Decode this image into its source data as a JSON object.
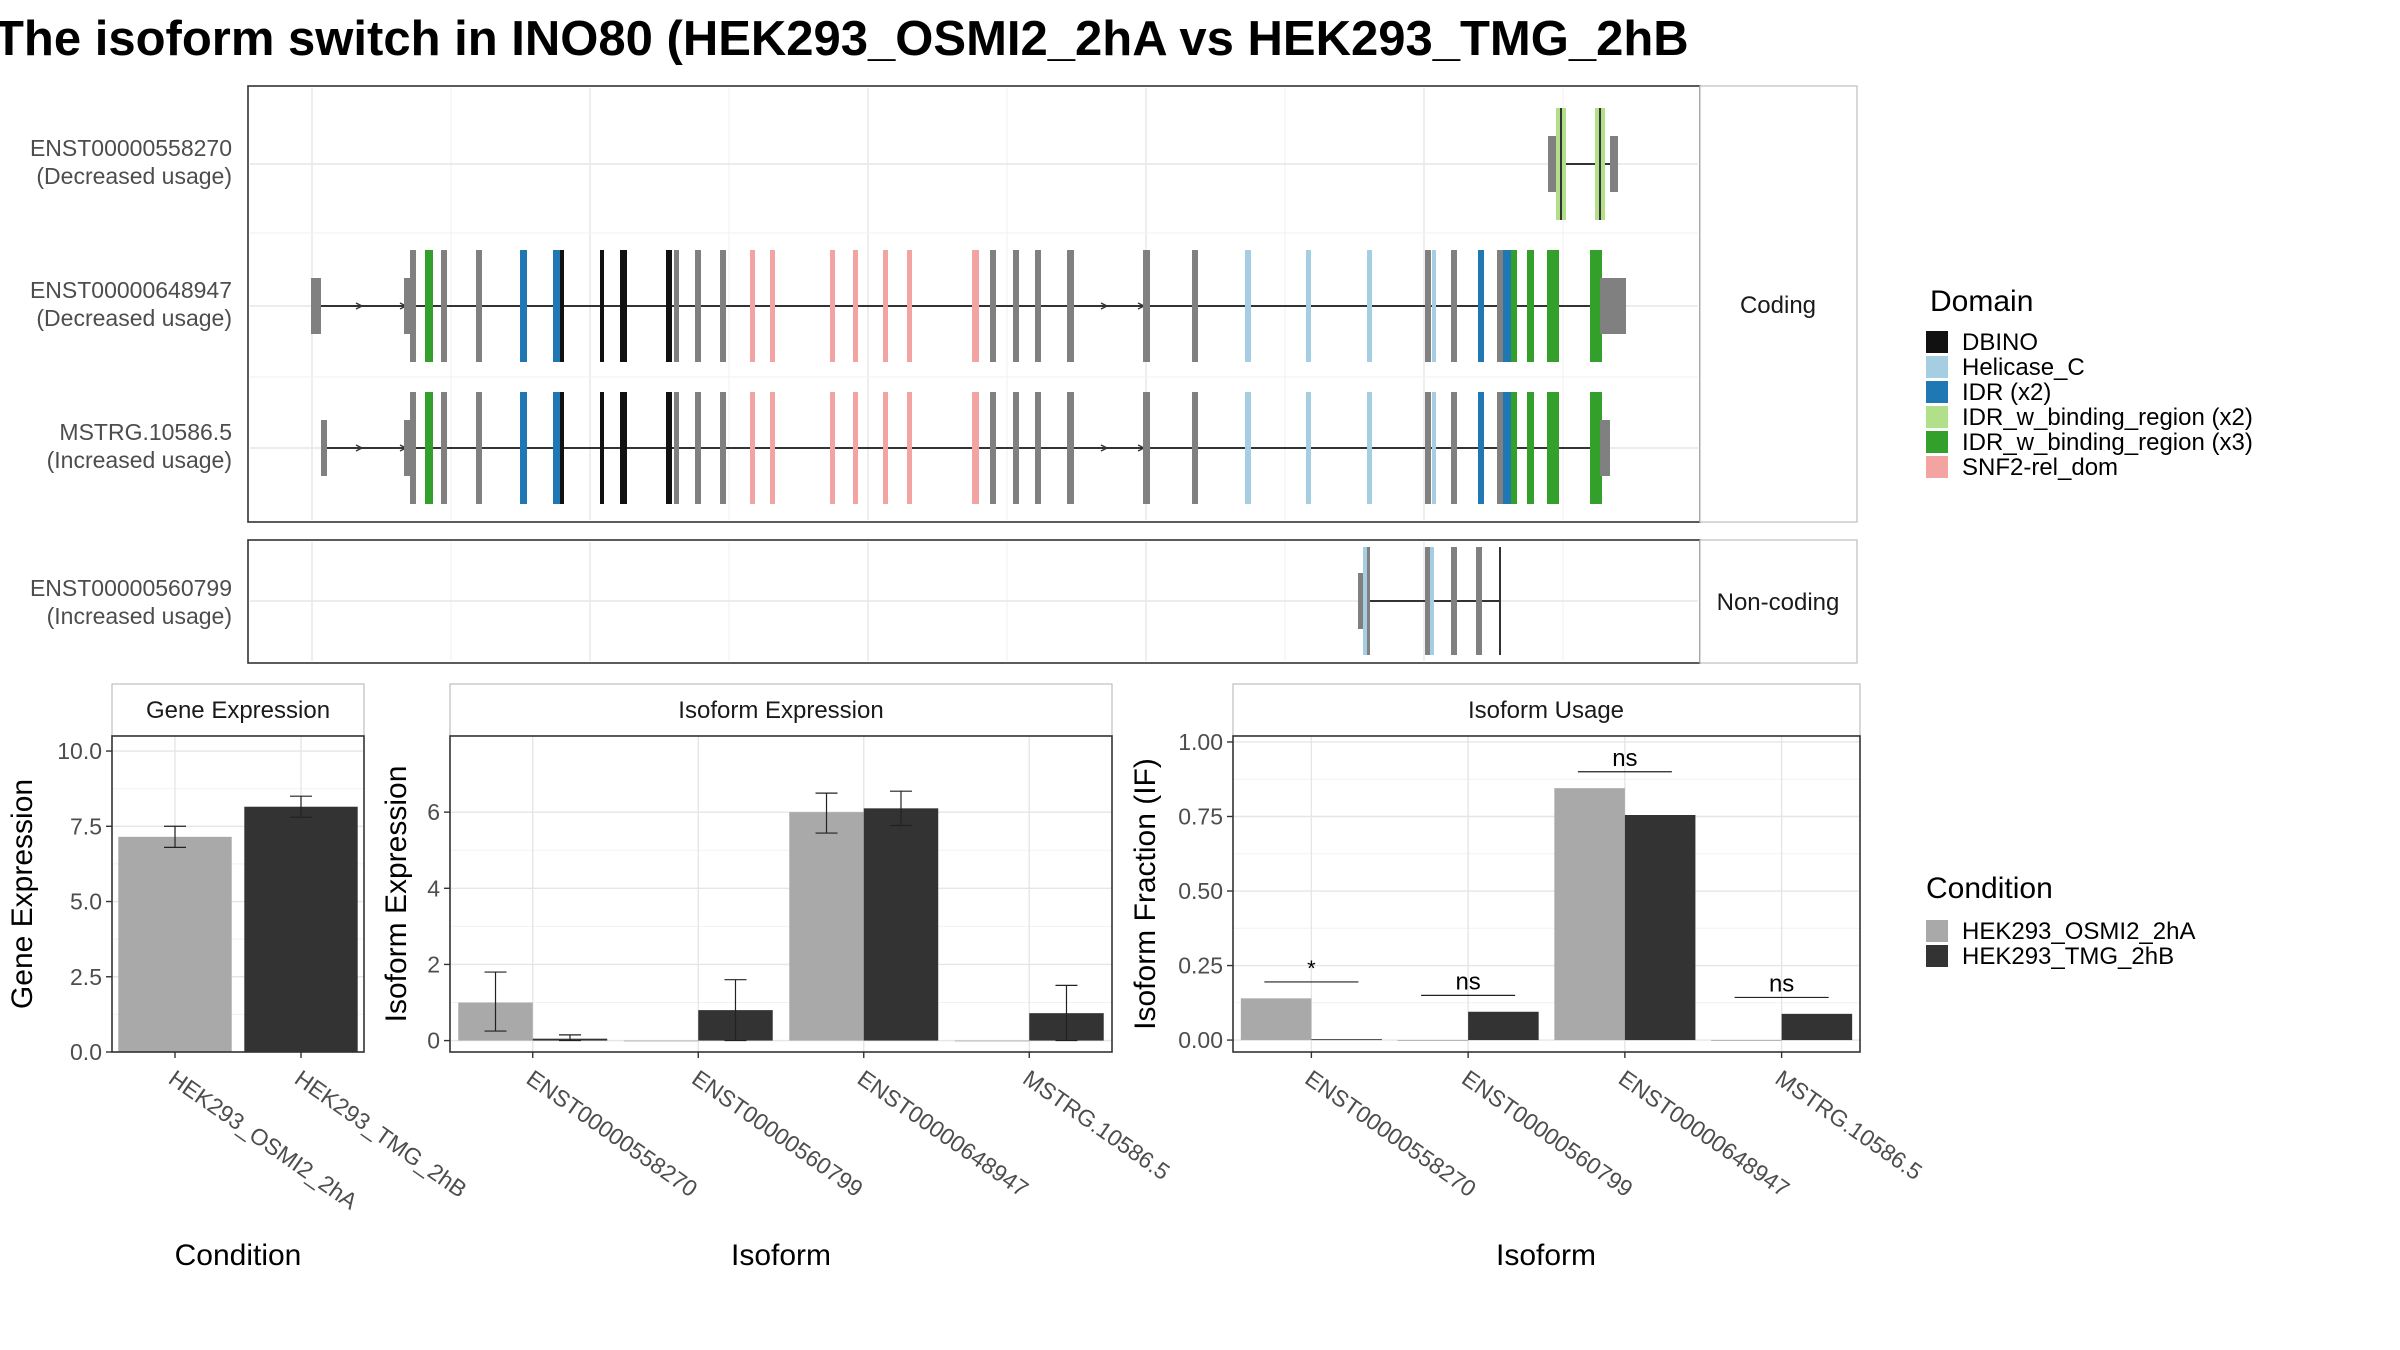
{
  "title": "The isoform switch in INO80 (HEK293_OSMI2_2hA vs HEK293_TMG_2hB",
  "colors": {
    "cond_a": "#a9a9a9",
    "cond_b": "#333333",
    "generic_exon": "#808080",
    "DBINO": "#111111",
    "Helicase_C": "#a6cee3",
    "IDR (x2)": "#1f78b4",
    "IDR_w_binding_region (x2)": "#b2df8a",
    "IDR_w_binding_region (x3)": "#33a02c",
    "SNF2-rel_dom": "#f4a3a3"
  },
  "structure": {
    "coding_strip": "Coding",
    "noncoding_strip": "Non-coding",
    "tracks": [
      {
        "id": "ENST00000558270",
        "label": "ENST00000558270",
        "usage": "(Decreased usage)",
        "group": "coding"
      },
      {
        "id": "ENST00000648947",
        "label": "ENST00000648947",
        "usage": "(Decreased usage)",
        "group": "coding"
      },
      {
        "id": "MSTRG.10586.5",
        "label": "MSTRG.10586.5",
        "usage": "(Increased usage)",
        "group": "coding"
      },
      {
        "id": "ENST00000560799",
        "label": "ENST00000560799",
        "usage": "(Increased usage)",
        "group": "noncoding"
      }
    ]
  },
  "legend_domain": {
    "title": "Domain",
    "items": [
      "DBINO",
      "Helicase_C",
      "IDR (x2)",
      "IDR_w_binding_region (x2)",
      "IDR_w_binding_region (x3)",
      "SNF2-rel_dom"
    ]
  },
  "legend_condition": {
    "title": "Condition",
    "items": [
      "HEK293_OSMI2_2hA",
      "HEK293_TMG_2hB"
    ]
  },
  "chart_data": [
    {
      "type": "bar",
      "title": "Gene Expression",
      "xlabel": "Condition",
      "ylabel": "Gene Expression",
      "categories": [
        "HEK293_OSMI2_2hA",
        "HEK293_TMG_2hB"
      ],
      "values": [
        7.15,
        8.15
      ],
      "errors": [
        [
          6.8,
          7.5
        ],
        [
          7.8,
          8.5
        ]
      ],
      "ylim": [
        0,
        10.5
      ],
      "yticks": [
        0.0,
        2.5,
        5.0,
        7.5,
        10.0
      ],
      "ytick_labels": [
        "0.0",
        "2.5",
        "5.0",
        "7.5",
        "10.0"
      ]
    },
    {
      "type": "bar",
      "title": "Isoform Expression",
      "xlabel": "Isoform",
      "ylabel": "Isoform Expression",
      "categories": [
        "ENST00000558270",
        "ENST00000560799",
        "ENST00000648947",
        "MSTRG.10586.5"
      ],
      "series": [
        {
          "name": "HEK293_OSMI2_2hA",
          "values": [
            1.0,
            0.0,
            6.0,
            0.0
          ],
          "errors": [
            [
              0.25,
              1.8
            ],
            null,
            [
              5.45,
              6.5
            ],
            null
          ]
        },
        {
          "name": "HEK293_TMG_2hB",
          "values": [
            0.05,
            0.8,
            6.1,
            0.72
          ],
          "errors": [
            [
              0.0,
              0.15
            ],
            [
              0.0,
              1.6
            ],
            [
              5.65,
              6.55
            ],
            [
              0.0,
              1.45
            ]
          ]
        }
      ],
      "ylim": [
        -0.3,
        8.0
      ],
      "yticks": [
        0,
        2,
        4,
        6
      ],
      "ytick_labels": [
        "0",
        "2",
        "4",
        "6"
      ]
    },
    {
      "type": "bar",
      "title": "Isoform Usage",
      "xlabel": "Isoform",
      "ylabel": "Isoform Fraction (IF)",
      "categories": [
        "ENST00000558270",
        "ENST00000560799",
        "ENST00000648947",
        "MSTRG.10586.5"
      ],
      "series": [
        {
          "name": "HEK293_OSMI2_2hA",
          "values": [
            0.14,
            0.0,
            0.845,
            0.0
          ]
        },
        {
          "name": "HEK293_TMG_2hB",
          "values": [
            0.003,
            0.095,
            0.755,
            0.088
          ]
        }
      ],
      "significance": [
        "*",
        "ns",
        "ns",
        "ns"
      ],
      "ylim": [
        -0.04,
        1.02
      ],
      "yticks": [
        0.0,
        0.25,
        0.5,
        0.75,
        1.0
      ],
      "ytick_labels": [
        "0.00",
        "0.25",
        "0.50",
        "0.75",
        "1.00"
      ]
    }
  ]
}
